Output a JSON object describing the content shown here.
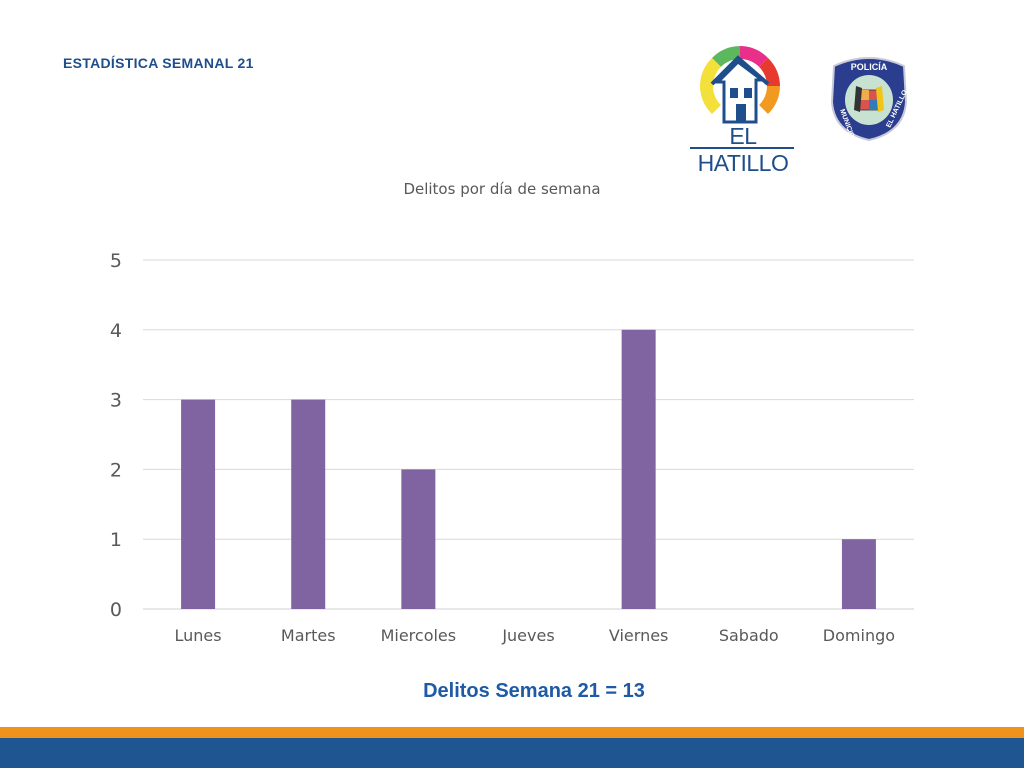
{
  "header": {
    "title": "ESTADÍSTICA SEMANAL 21"
  },
  "logos": {
    "hatillo_text": "EL HATILLO",
    "policia": "POLICÍA",
    "municipio": "MUNICIPIO",
    "el_hatillo": "EL HATILLO"
  },
  "chart_data": {
    "type": "bar",
    "title": "Delitos por día de semana",
    "categories": [
      "Lunes",
      "Martes",
      "Miercoles",
      "Jueves",
      "Viernes",
      "Sabado",
      "Domingo"
    ],
    "values": [
      3,
      3,
      2,
      0,
      4,
      0,
      1
    ],
    "yticks": [
      0,
      1,
      2,
      3,
      4,
      5
    ],
    "ylim": [
      0,
      5
    ],
    "grid": true,
    "bar_color": "#8064a2"
  },
  "total": {
    "label": "Delitos Semana 21 = 13"
  },
  "colors": {
    "orange_band": "#f0921c",
    "blue_band": "#1f5590",
    "title_blue": "#1f4e8c"
  }
}
